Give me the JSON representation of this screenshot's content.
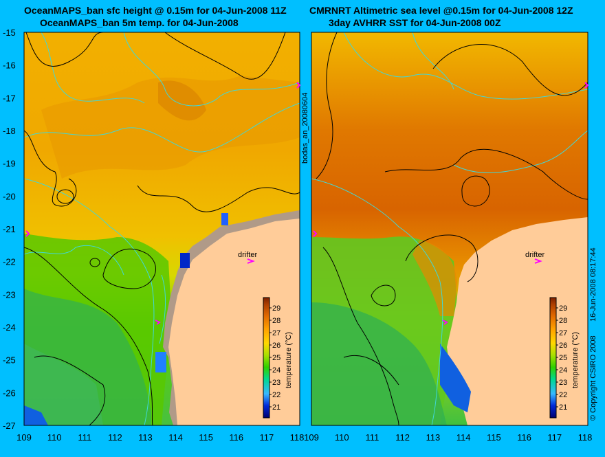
{
  "titles": {
    "left_line1": "OceanMAPS_ban sfc height @ 0.15m for 04-Jun-2008 11Z",
    "left_line2": "OceanMAPS_ban 5m temp. for 04-Jun-2008",
    "right_line1": "CMRNRT Altimetric sea level  @0.15m  for 04-Jun-2008 12Z",
    "right_line2": "3day AVHRR SST for 04-Jun-2008 00Z"
  },
  "axes": {
    "lat_labels": [
      "-15",
      "-16",
      "-17",
      "-18",
      "-19",
      "-20",
      "-21",
      "-22",
      "-23",
      "-24",
      "-25",
      "-26",
      "-27"
    ],
    "lon_labels": [
      "109",
      "110",
      "111",
      "112",
      "113",
      "114",
      "115",
      "116",
      "117",
      "118"
    ],
    "lat_range": [
      -27,
      -15
    ],
    "lon_range": [
      109,
      118
    ]
  },
  "colorbar": {
    "label": "temperature (°C)",
    "ticks": [
      "29",
      "28",
      "27",
      "26",
      "25",
      "24",
      "23",
      "22",
      "21"
    ],
    "colors": [
      "#000070",
      "#0028d8",
      "#38b8ff",
      "#00d890",
      "#30d000",
      "#a8e000",
      "#ffd800",
      "#ffa000",
      "#e06800",
      "#b04000",
      "#7a2000"
    ]
  },
  "labels": {
    "drifter": "drifter",
    "side_id": "bodas_an_20080604",
    "copyright": "© Copyright CSIRO 2008",
    "date_stamp": "16-Jun-2008 08:17:44"
  },
  "colors": {
    "background": "#00bfff",
    "land": "#ffcc99",
    "land_model": "#b09a88",
    "contour": "#000000",
    "bathymetry": "#40d8d8",
    "drifter_marker": "#ff00ff"
  },
  "drifter": {
    "lon": 116.5,
    "lat": -21.9
  }
}
